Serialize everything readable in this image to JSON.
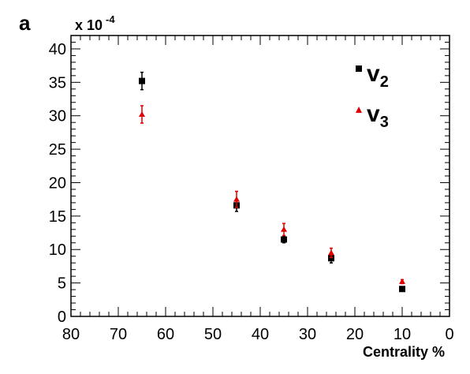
{
  "panel_label": "a",
  "chart_data": {
    "type": "scatter",
    "title": "",
    "xlabel": "Centrality %",
    "ylabel": "",
    "y_multiplier_label": "x 10",
    "y_multiplier_exponent": "-4",
    "xlim": [
      80,
      0
    ],
    "x_reversed": true,
    "ylim": [
      0,
      42
    ],
    "x_ticks": [
      80,
      70,
      60,
      50,
      40,
      30,
      20,
      10,
      0
    ],
    "y_ticks": [
      0,
      5,
      10,
      15,
      20,
      25,
      30,
      35,
      40
    ],
    "grid": false,
    "legend_placement": "top-right",
    "series": [
      {
        "name": "v",
        "subscript": "2",
        "marker": "square",
        "color": "#000000",
        "points": [
          {
            "x": 65,
            "y": 35.2,
            "err": 1.3
          },
          {
            "x": 45,
            "y": 16.6,
            "err": 0.9
          },
          {
            "x": 35,
            "y": 11.5,
            "err": 0.5
          },
          {
            "x": 25,
            "y": 8.7,
            "err": 0.7
          },
          {
            "x": 10,
            "y": 4.1,
            "err": 0.3
          }
        ]
      },
      {
        "name": "v",
        "subscript": "3",
        "marker": "triangle",
        "color": "#e00000",
        "points": [
          {
            "x": 65,
            "y": 30.2,
            "err": 1.3
          },
          {
            "x": 45,
            "y": 17.5,
            "err": 1.2
          },
          {
            "x": 35,
            "y": 13.0,
            "err": 0.9
          },
          {
            "x": 25,
            "y": 9.5,
            "err": 0.7
          },
          {
            "x": 10,
            "y": 5.2,
            "err": 0.3
          }
        ]
      }
    ]
  }
}
